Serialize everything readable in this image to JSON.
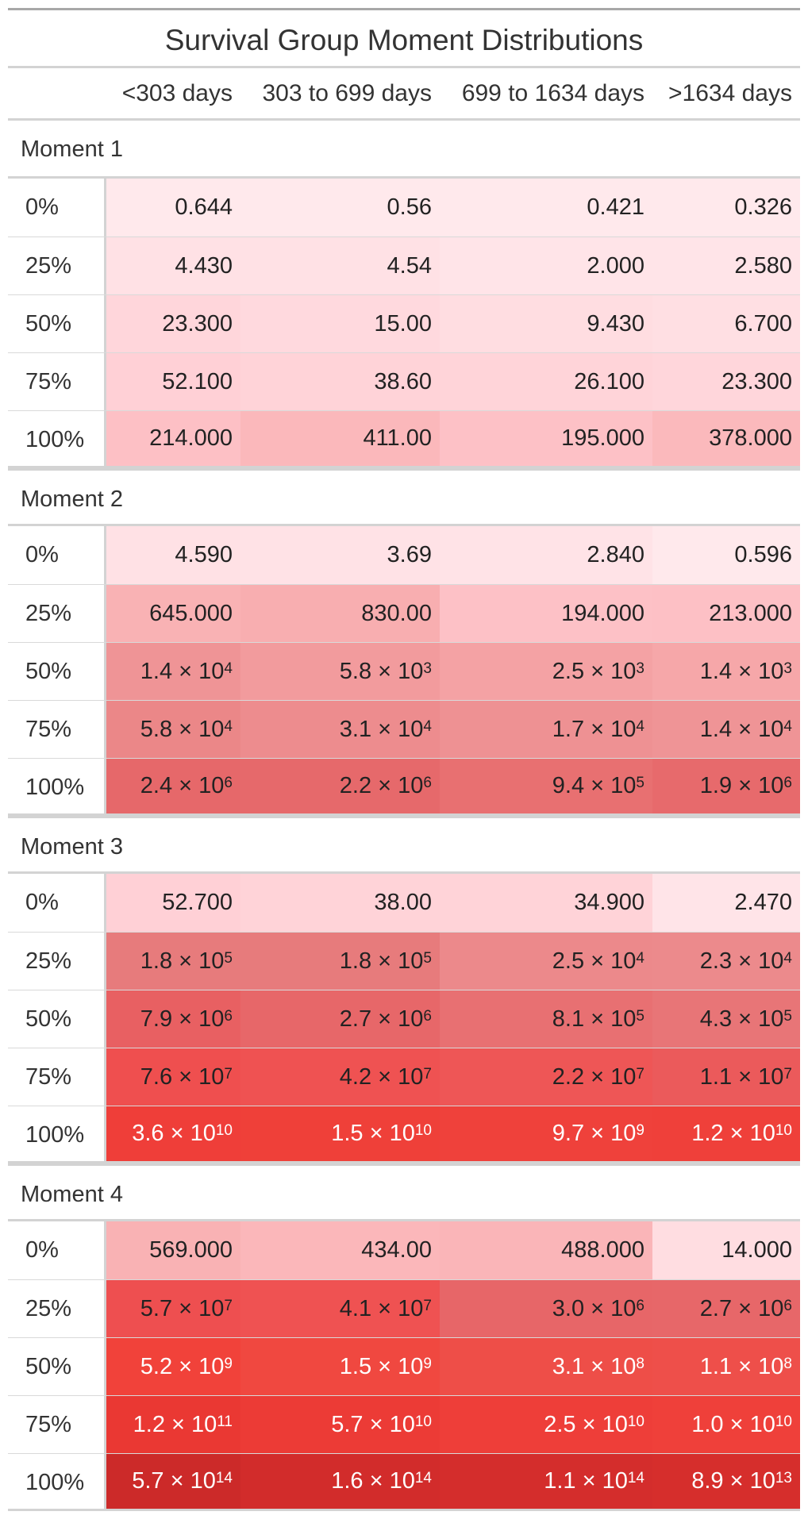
{
  "title": "Survival Group Moment Distributions",
  "columns": [
    "<303 days",
    "303 to 699 days",
    "699 to 1634 days",
    ">1634 days"
  ],
  "groups": [
    {
      "label": "Moment 1",
      "rows": [
        {
          "q": "0%",
          "cells": [
            {
              "m": "0.644",
              "bg": "#ffe9ec"
            },
            {
              "m": "0.56",
              "bg": "#ffe9ec"
            },
            {
              "m": "0.421",
              "bg": "#ffe9ec"
            },
            {
              "m": "0.326",
              "bg": "#ffe9ec"
            }
          ]
        },
        {
          "q": "25%",
          "cells": [
            {
              "m": "4.430",
              "bg": "#ffe1e5"
            },
            {
              "m": "4.54",
              "bg": "#ffe1e5"
            },
            {
              "m": "2.000",
              "bg": "#ffe4e8"
            },
            {
              "m": "2.580",
              "bg": "#ffe4e8"
            }
          ]
        },
        {
          "q": "50%",
          "cells": [
            {
              "m": "23.300",
              "bg": "#ffd6db"
            },
            {
              "m": "15.00",
              "bg": "#ffd9de"
            },
            {
              "m": "9.430",
              "bg": "#ffdde1"
            },
            {
              "m": "6.700",
              "bg": "#ffdfe3"
            }
          ]
        },
        {
          "q": "75%",
          "cells": [
            {
              "m": "52.100",
              "bg": "#ffd0d6"
            },
            {
              "m": "38.60",
              "bg": "#ffd3d8"
            },
            {
              "m": "26.100",
              "bg": "#ffd4d9"
            },
            {
              "m": "23.300",
              "bg": "#ffd6db"
            }
          ]
        },
        {
          "q": "100%",
          "cells": [
            {
              "m": "214.000",
              "bg": "#fdc0c5"
            },
            {
              "m": "411.00",
              "bg": "#fbb8bb"
            },
            {
              "m": "195.000",
              "bg": "#fdc1c6"
            },
            {
              "m": "378.000",
              "bg": "#fbb9bc"
            }
          ]
        }
      ]
    },
    {
      "label": "Moment 2",
      "rows": [
        {
          "q": "0%",
          "cells": [
            {
              "m": "4.590",
              "bg": "#ffe1e5"
            },
            {
              "m": "3.69",
              "bg": "#ffe2e6"
            },
            {
              "m": "2.840",
              "bg": "#ffe3e7"
            },
            {
              "m": "0.596",
              "bg": "#ffe9ec"
            }
          ]
        },
        {
          "q": "25%",
          "cells": [
            {
              "m": "645.000",
              "bg": "#f9b2b4"
            },
            {
              "m": "830.00",
              "bg": "#f8aeb0"
            },
            {
              "m": "194.000",
              "bg": "#fdc1c6"
            },
            {
              "m": "213.000",
              "bg": "#fdc0c5"
            }
          ]
        },
        {
          "q": "50%",
          "cells": [
            {
              "m": "1.4 × 10",
              "e": "4",
              "bg": "#ef9496"
            },
            {
              "m": "5.8 × 10",
              "e": "3",
              "bg": "#f29b9d"
            },
            {
              "m": "2.5 × 10",
              "e": "3",
              "bg": "#f4a2a4"
            },
            {
              "m": "1.4 × 10",
              "e": "3",
              "bg": "#f6a7a9"
            }
          ]
        },
        {
          "q": "75%",
          "cells": [
            {
              "m": "5.8 × 10",
              "e": "4",
              "bg": "#eb8788"
            },
            {
              "m": "3.1 × 10",
              "e": "4",
              "bg": "#ed8c8e"
            },
            {
              "m": "1.7 × 10",
              "e": "4",
              "bg": "#ee9193"
            },
            {
              "m": "1.4 × 10",
              "e": "4",
              "bg": "#ef9496"
            }
          ]
        },
        {
          "q": "100%",
          "cells": [
            {
              "m": "2.4 × 10",
              "e": "6",
              "bg": "#e6686a"
            },
            {
              "m": "2.2 × 10",
              "e": "6",
              "bg": "#e6696b"
            },
            {
              "m": "9.4 × 10",
              "e": "5",
              "bg": "#e87071"
            },
            {
              "m": "1.9 × 10",
              "e": "6",
              "bg": "#e76a6c"
            }
          ]
        }
      ]
    },
    {
      "label": "Moment 3",
      "rows": [
        {
          "q": "0%",
          "cells": [
            {
              "m": "52.700",
              "bg": "#ffd0d6"
            },
            {
              "m": "38.00",
              "bg": "#ffd3d8"
            },
            {
              "m": "34.900",
              "bg": "#ffd3d8"
            },
            {
              "m": "2.470",
              "bg": "#ffe4e8"
            }
          ]
        },
        {
          "q": "25%",
          "cells": [
            {
              "m": "1.8 × 10",
              "e": "5",
              "bg": "#e77b7c"
            },
            {
              "m": "1.8 × 10",
              "e": "5",
              "bg": "#e77b7c"
            },
            {
              "m": "2.5 × 10",
              "e": "4",
              "bg": "#ec898b"
            },
            {
              "m": "2.3 × 10",
              "e": "4",
              "bg": "#ec8a8c"
            }
          ]
        },
        {
          "q": "50%",
          "cells": [
            {
              "m": "7.9 × 10",
              "e": "6",
              "bg": "#e86062"
            },
            {
              "m": "2.7 × 10",
              "e": "6",
              "bg": "#e76769"
            },
            {
              "m": "8.1 × 10",
              "e": "5",
              "bg": "#e87072"
            },
            {
              "m": "4.3 × 10",
              "e": "5",
              "bg": "#e87577"
            }
          ]
        },
        {
          "q": "75%",
          "cells": [
            {
              "m": "7.6 × 10",
              "e": "7",
              "bg": "#ef4f4f"
            },
            {
              "m": "4.2 × 10",
              "e": "7",
              "bg": "#ef5252"
            },
            {
              "m": "2.2 × 10",
              "e": "7",
              "bg": "#ee5656"
            },
            {
              "m": "1.1 × 10",
              "e": "7",
              "bg": "#eb5a5b"
            }
          ]
        },
        {
          "q": "100%",
          "cells": [
            {
              "m": "3.6 × 10",
              "e": "10",
              "bg": "#ef3e39",
              "light": true
            },
            {
              "m": "1.5 × 10",
              "e": "10",
              "bg": "#ef4039",
              "light": true
            },
            {
              "m": "9.7 × 10",
              "e": "9",
              "bg": "#ef413b",
              "light": true
            },
            {
              "m": "1.2 × 10",
              "e": "10",
              "bg": "#ef403a",
              "light": true
            }
          ]
        }
      ]
    },
    {
      "label": "Moment 4",
      "rows": [
        {
          "q": "0%",
          "cells": [
            {
              "m": "569.000",
              "bg": "#f9b2b4"
            },
            {
              "m": "434.00",
              "bg": "#fbb7ba"
            },
            {
              "m": "488.000",
              "bg": "#fab5b8"
            },
            {
              "m": "14.000",
              "bg": "#ffdde1"
            }
          ]
        },
        {
          "q": "25%",
          "cells": [
            {
              "m": "5.7 × 10",
              "e": "7",
              "bg": "#ee4f50"
            },
            {
              "m": "4.1 × 10",
              "e": "7",
              "bg": "#ef5252"
            },
            {
              "m": "3.0 × 10",
              "e": "6",
              "bg": "#e76668"
            },
            {
              "m": "2.7 × 10",
              "e": "6",
              "bg": "#e76769"
            }
          ]
        },
        {
          "q": "50%",
          "cells": [
            {
              "m": "5.2 × 10",
              "e": "9",
              "bg": "#f1423a",
              "light": true
            },
            {
              "m": "1.5 × 10",
              "e": "9",
              "bg": "#f04840",
              "light": true
            },
            {
              "m": "3.1 × 10",
              "e": "8",
              "bg": "#ee4e48",
              "light": true
            },
            {
              "m": "1.1 × 10",
              "e": "8",
              "bg": "#ee4f4a",
              "light": true
            }
          ]
        },
        {
          "q": "75%",
          "cells": [
            {
              "m": "1.2 × 10",
              "e": "11",
              "bg": "#ea3833",
              "light": true
            },
            {
              "m": "5.7 × 10",
              "e": "10",
              "bg": "#ec3b36",
              "light": true
            },
            {
              "m": "2.5 × 10",
              "e": "10",
              "bg": "#ee3e39",
              "light": true
            },
            {
              "m": "1.0 × 10",
              "e": "10",
              "bg": "#ef403a",
              "light": true
            }
          ]
        },
        {
          "q": "100%",
          "cells": [
            {
              "m": "5.7 × 10",
              "e": "14",
              "bg": "#cc2a29",
              "light": true
            },
            {
              "m": "1.6 × 10",
              "e": "14",
              "bg": "#d22c2b",
              "light": true
            },
            {
              "m": "1.1 × 10",
              "e": "14",
              "bg": "#d42d2c",
              "light": true
            },
            {
              "m": "8.9 × 10",
              "e": "13",
              "bg": "#d62e2c",
              "light": true
            }
          ]
        }
      ]
    }
  ]
}
